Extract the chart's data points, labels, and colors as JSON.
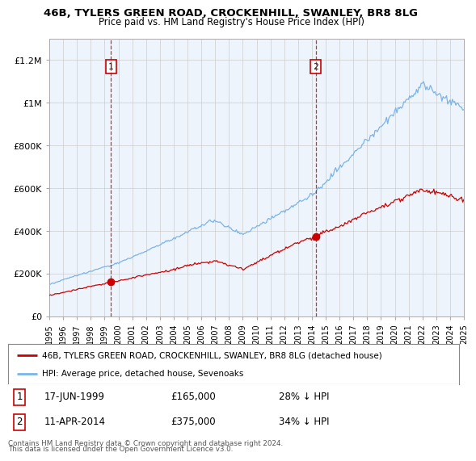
{
  "title": "46B, TYLERS GREEN ROAD, CROCKENHILL, SWANLEY, BR8 8LG",
  "subtitle": "Price paid vs. HM Land Registry's House Price Index (HPI)",
  "ylim": [
    0,
    1300000
  ],
  "yticks": [
    0,
    200000,
    400000,
    600000,
    800000,
    1000000,
    1200000
  ],
  "ytick_labels": [
    "£0",
    "£200K",
    "£400K",
    "£600K",
    "£800K",
    "£1M",
    "£1.2M"
  ],
  "hpi_color": "#7ab4e8",
  "hpi_fill_color": "#ddeeff",
  "property_color": "#cc0000",
  "vline_color": "#cc0000",
  "bg_color": "#ffffff",
  "plot_bg_color": "#eef4fb",
  "grid_color": "#cccccc",
  "sale1_year": 1999.46,
  "sale1_price": 165000,
  "sale2_year": 2014.27,
  "sale2_price": 375000,
  "legend_property_label": "46B, TYLERS GREEN ROAD, CROCKENHILL, SWANLEY, BR8 8LG (detached house)",
  "legend_hpi_label": "HPI: Average price, detached house, Sevenoaks",
  "ann1_label": "1",
  "ann1_date": "17-JUN-1999",
  "ann1_price": "£165,000",
  "ann1_pct": "28% ↓ HPI",
  "ann2_label": "2",
  "ann2_date": "11-APR-2014",
  "ann2_price": "£375,000",
  "ann2_pct": "34% ↓ HPI",
  "footer_line1": "Contains HM Land Registry data © Crown copyright and database right 2024.",
  "footer_line2": "This data is licensed under the Open Government Licence v3.0."
}
